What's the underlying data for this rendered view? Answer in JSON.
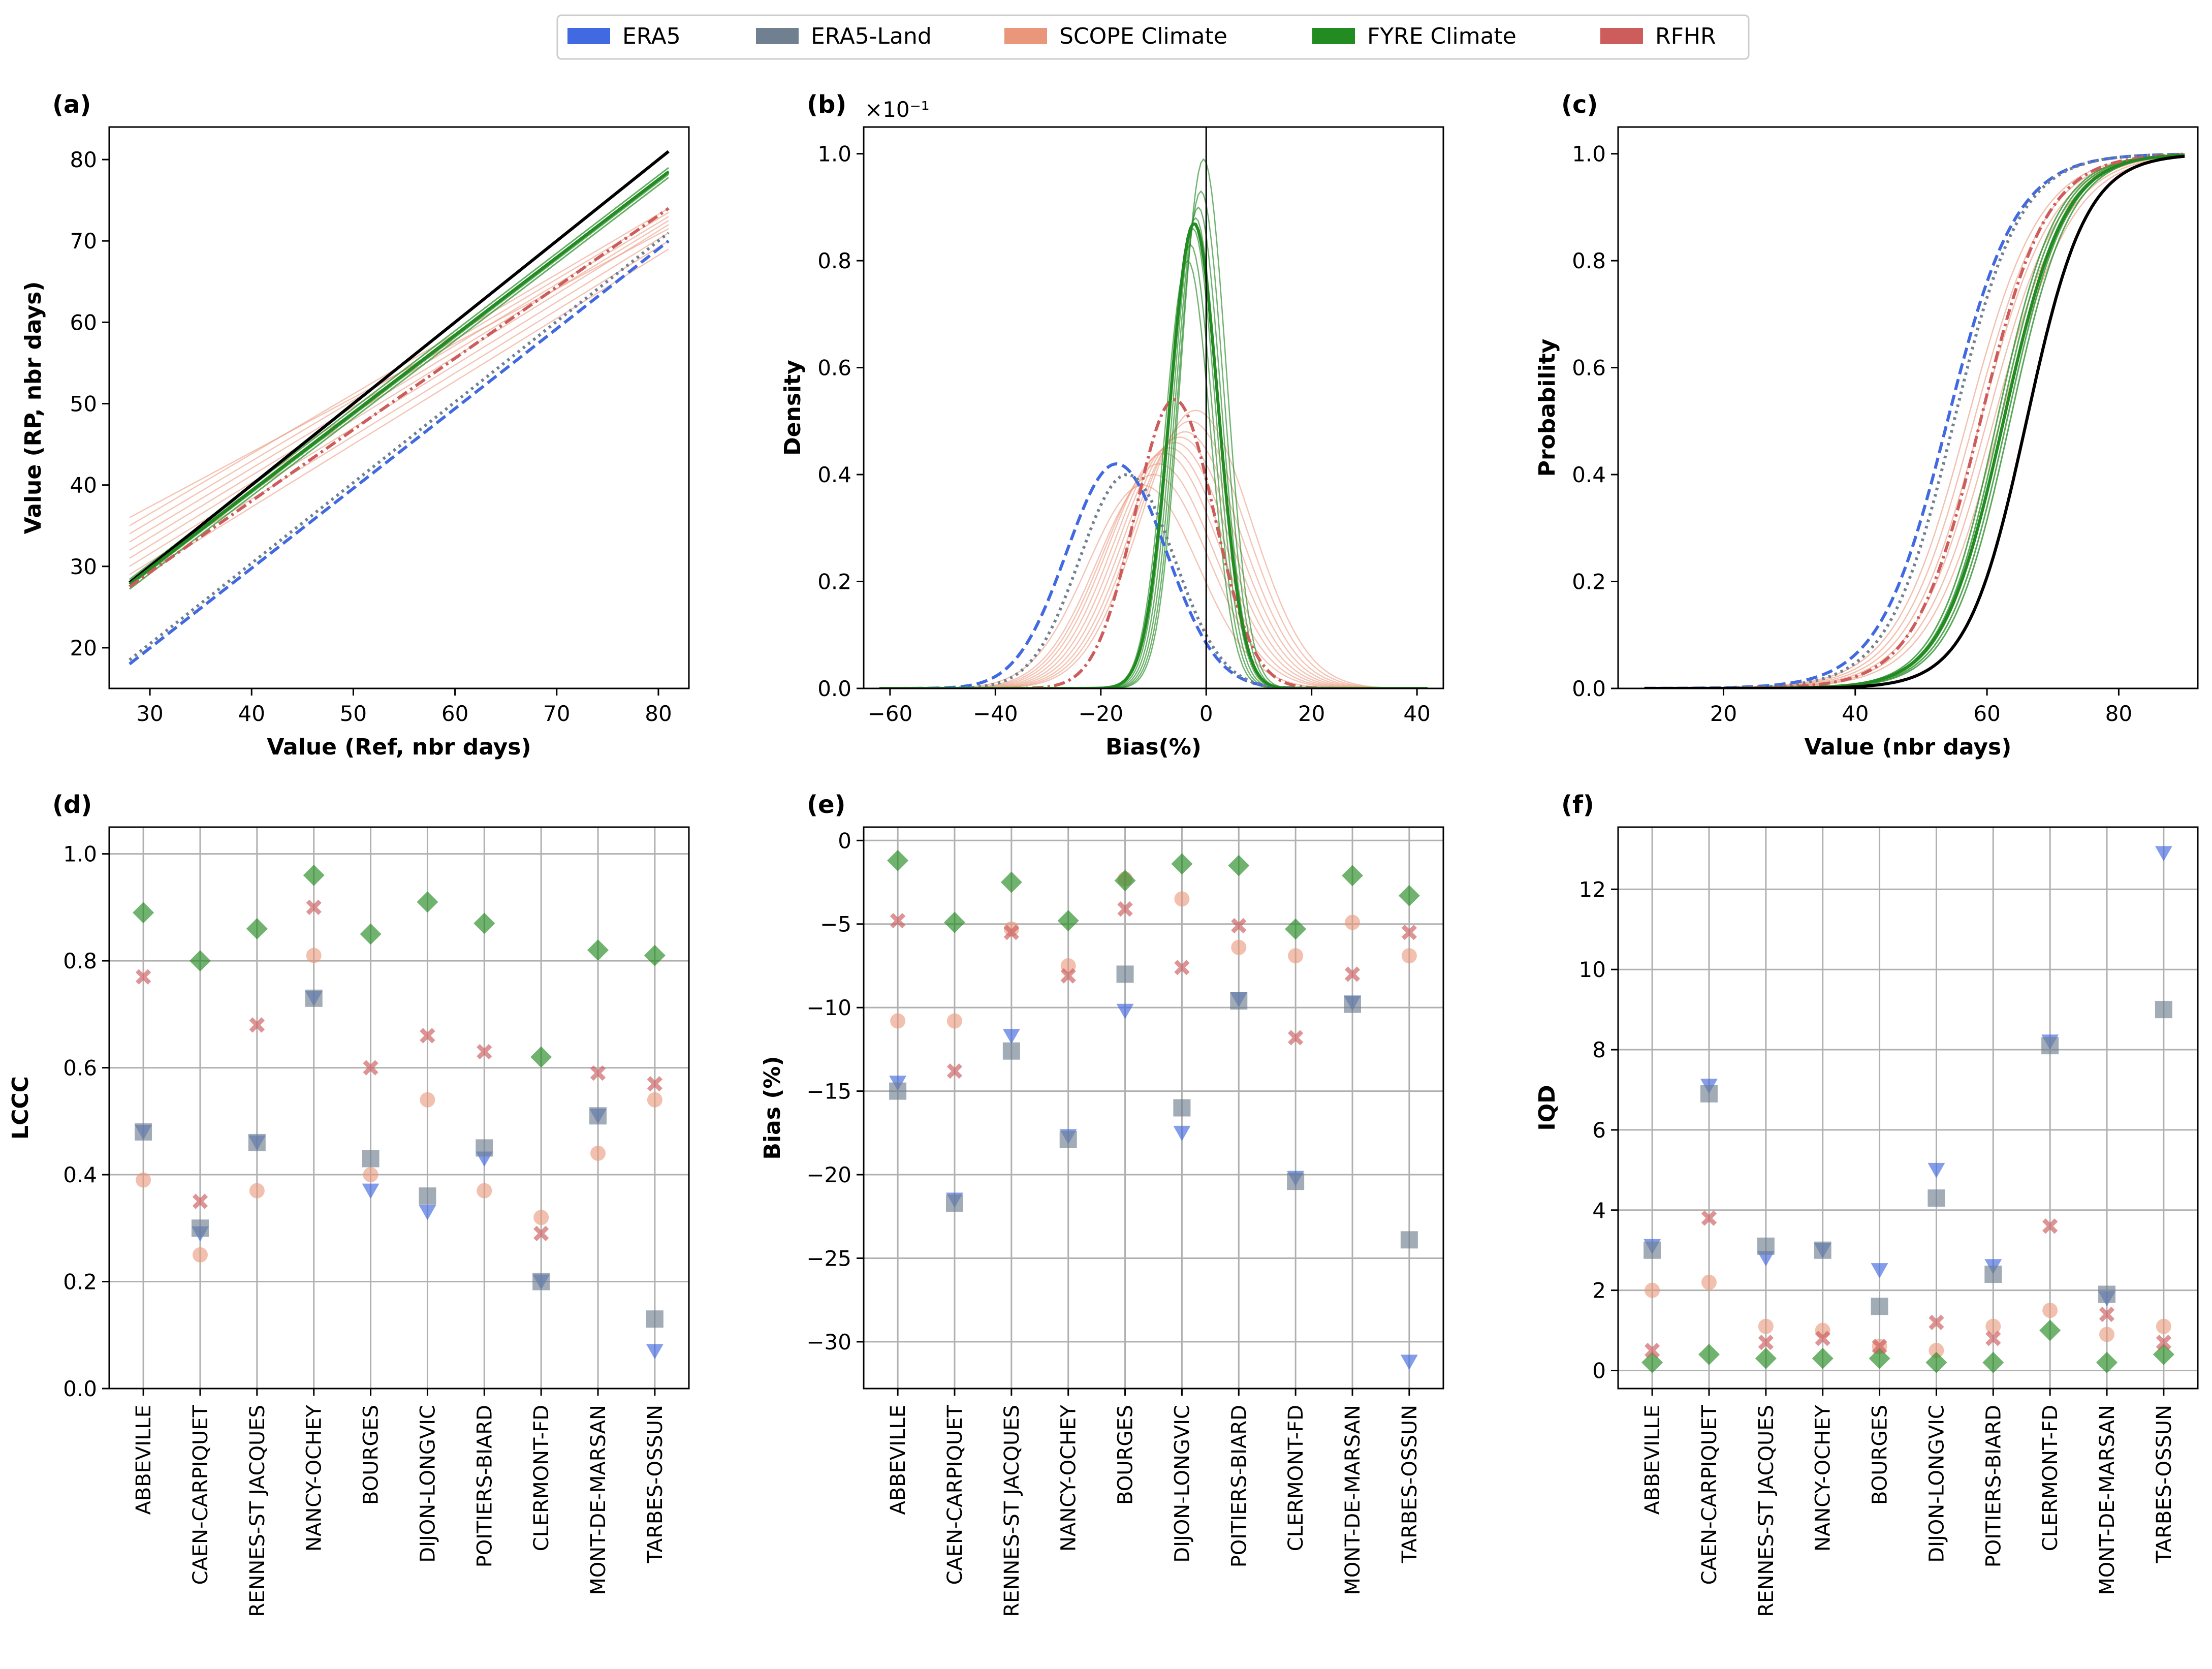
{
  "legend": [
    {
      "name": "ERA5",
      "color": "#4169e1"
    },
    {
      "name": "ERA5-Land",
      "color": "#708090"
    },
    {
      "name": "SCOPE Climate",
      "color": "#e9967a"
    },
    {
      "name": "FYRE Climate",
      "color": "#228b22"
    },
    {
      "name": "RFHR",
      "color": "#cd5c5c"
    }
  ],
  "stations": [
    "ABBEVILLE",
    "CAEN-CARPIQUET",
    "RENNES-ST JACQUES",
    "NANCY-OCHEY",
    "BOURGES",
    "DIJON-LONGVIC",
    "POITIERS-BIARD",
    "CLERMONT-FD",
    "MONT-DE-MARSAN",
    "TARBES-OSSUN"
  ],
  "chart_data": [
    {
      "panel": "(a)",
      "type": "line",
      "xlabel": "Value (Ref, nbr days)",
      "ylabel": "Value (RP, nbr days)",
      "xlim": [
        26,
        83
      ],
      "ylim": [
        15,
        84
      ],
      "xticks": [
        30,
        40,
        50,
        60,
        70,
        80
      ],
      "yticks": [
        20,
        30,
        40,
        50,
        60,
        70,
        80
      ],
      "x": [
        28,
        81
      ],
      "series": [
        {
          "name": "Reference",
          "y": [
            28,
            81
          ],
          "color": "#000000",
          "style": "solid"
        },
        {
          "name": "ERA5",
          "y": [
            18,
            70
          ],
          "color": "#4169e1",
          "style": "dashed"
        },
        {
          "name": "ERA5-Land",
          "y": [
            18.5,
            71
          ],
          "color": "#708090",
          "style": "dotted"
        },
        {
          "name": "FYRE Climate",
          "y": [
            27.8,
            78.5
          ],
          "color": "#228b22",
          "style": "solid"
        },
        {
          "name": "RFHR",
          "y": [
            27.5,
            74
          ],
          "color": "#cd5c5c",
          "style": "dashdot"
        }
      ],
      "scope_members": {
        "y_start": [
          28,
          29,
          30,
          31,
          32,
          33,
          34,
          35,
          36
        ],
        "y_end": [
          69,
          70,
          71,
          72,
          72.5,
          73,
          73.5,
          74,
          71.5
        ]
      },
      "fyre_members": {
        "y_start": [
          27.2,
          27.6,
          28,
          28.4
        ],
        "y_end": [
          77.8,
          78.2,
          78.6,
          79
        ]
      }
    },
    {
      "panel": "(b)",
      "type": "line",
      "xlabel": "Bias(%)",
      "ylabel": "Density",
      "multiplier": "×10⁻¹",
      "xlim": [
        -65,
        45
      ],
      "ylim": [
        0,
        1.05
      ],
      "xticks": [
        -60,
        -40,
        -20,
        0,
        20,
        40
      ],
      "yticks": [
        0.0,
        0.2,
        0.4,
        0.6,
        0.8,
        1.0
      ],
      "vline": 0,
      "series": [
        {
          "name": "ERA5",
          "mean": -17,
          "sd": 9.5,
          "peak": 0.42,
          "color": "#4169e1",
          "style": "dashed"
        },
        {
          "name": "ERA5-Land",
          "mean": -15,
          "sd": 9,
          "peak": 0.4,
          "color": "#708090",
          "style": "dotted"
        },
        {
          "name": "RFHR",
          "mean": -6,
          "sd": 7.5,
          "peak": 0.54,
          "color": "#cd5c5c",
          "style": "dashdot"
        },
        {
          "name": "FYRE Climate",
          "mean": -2.3,
          "sd": 4.6,
          "peak": 0.87,
          "color": "#228b22",
          "style": "solid"
        }
      ],
      "scope_members": {
        "means": [
          -12,
          -10,
          -9,
          -8,
          -7,
          -6,
          -5,
          -4,
          -3,
          -2
        ],
        "sd": 10.5,
        "peaks": [
          0.38,
          0.4,
          0.42,
          0.44,
          0.45,
          0.46,
          0.47,
          0.48,
          0.5,
          0.52
        ]
      },
      "fyre_members": {
        "means": [
          -3.5,
          -3,
          -2.5,
          -2,
          -1.5,
          -1,
          -0.5
        ],
        "sd": 4.3,
        "peaks": [
          0.8,
          0.83,
          0.86,
          0.88,
          0.9,
          0.93,
          0.99
        ]
      }
    },
    {
      "panel": "(c)",
      "type": "line",
      "xlabel": "Value (nbr days)",
      "ylabel": "Probability",
      "xlim": [
        4,
        92
      ],
      "ylim": [
        0,
        1.05
      ],
      "xticks": [
        20,
        40,
        60,
        80
      ],
      "yticks": [
        0.0,
        0.2,
        0.4,
        0.6,
        0.8,
        1.0
      ],
      "x_range": [
        8,
        90
      ],
      "series": [
        {
          "name": "ERA5",
          "median": 54,
          "scale": 5.2,
          "color": "#4169e1",
          "style": "dashed"
        },
        {
          "name": "ERA5-Land",
          "median": 55,
          "scale": 5.0,
          "color": "#708090",
          "style": "dotted"
        },
        {
          "name": "RFHR",
          "median": 59,
          "scale": 5.0,
          "color": "#cd5c5c",
          "style": "dashdot"
        },
        {
          "name": "FYRE Climate",
          "median": 62.5,
          "scale": 4.6,
          "color": "#228b22",
          "style": "solid"
        },
        {
          "name": "Reference",
          "median": 66,
          "scale": 4.5,
          "color": "#000000",
          "style": "solid"
        }
      ],
      "scope_members": {
        "medians": [
          57,
          58,
          59,
          60,
          61,
          62
        ],
        "scale": 5.5
      },
      "fyre_members": {
        "medians": [
          61.5,
          62,
          62.5,
          63,
          63.5
        ],
        "scale": 4.5
      }
    },
    {
      "panel": "(d)",
      "type": "scatter",
      "xlabel": "",
      "ylabel": "LCCC",
      "ylim": [
        0,
        1.05
      ],
      "yticks": [
        0.0,
        0.2,
        0.4,
        0.6,
        0.8,
        1.0
      ],
      "series": [
        {
          "name": "ERA5",
          "values": [
            0.48,
            0.29,
            0.46,
            0.73,
            0.37,
            0.33,
            0.43,
            0.2,
            0.51,
            0.07
          ]
        },
        {
          "name": "ERA5-Land",
          "values": [
            0.48,
            0.3,
            0.46,
            0.73,
            0.43,
            0.36,
            0.45,
            0.2,
            0.51,
            0.13
          ]
        },
        {
          "name": "SCOPE Climate",
          "values": [
            0.39,
            0.25,
            0.37,
            0.81,
            0.4,
            0.54,
            0.37,
            0.32,
            0.44,
            0.54
          ]
        },
        {
          "name": "FYRE Climate",
          "values": [
            0.89,
            0.8,
            0.86,
            0.96,
            0.85,
            0.91,
            0.87,
            0.62,
            0.82,
            0.81
          ]
        },
        {
          "name": "RFHR",
          "values": [
            0.77,
            0.35,
            0.68,
            0.9,
            0.6,
            0.66,
            0.63,
            0.29,
            0.59,
            0.57
          ]
        }
      ]
    },
    {
      "panel": "(e)",
      "type": "scatter",
      "xlabel": "",
      "ylabel": "Bias (%)",
      "ylim": [
        -32.8,
        0.8
      ],
      "yticks": [
        0,
        -5,
        -10,
        -15,
        -20,
        -25,
        -30
      ],
      "series": [
        {
          "name": "ERA5",
          "values": [
            -14.5,
            -21.5,
            -11.7,
            -17.7,
            -10.2,
            -17.5,
            -9.5,
            -20.2,
            -9.7,
            -31.2
          ]
        },
        {
          "name": "ERA5-Land",
          "values": [
            -15.0,
            -21.7,
            -12.6,
            -17.9,
            -8.0,
            -16.0,
            -9.6,
            -20.4,
            -9.8,
            -23.9
          ]
        },
        {
          "name": "SCOPE Climate",
          "values": [
            -10.8,
            -10.8,
            -5.3,
            -7.5,
            -2.3,
            -3.5,
            -6.4,
            -6.9,
            -4.9,
            -6.9
          ]
        },
        {
          "name": "FYRE Climate",
          "values": [
            -1.2,
            -4.9,
            -2.5,
            -4.8,
            -2.4,
            -1.4,
            -1.5,
            -5.3,
            -2.1,
            -3.3
          ]
        },
        {
          "name": "RFHR",
          "values": [
            -4.8,
            -13.8,
            -5.5,
            -8.1,
            -4.1,
            -7.6,
            -5.1,
            -11.8,
            -8.0,
            -5.5
          ]
        }
      ]
    },
    {
      "panel": "(f)",
      "type": "scatter",
      "xlabel": "",
      "ylabel": "IQD",
      "ylim": [
        -0.45,
        13.55
      ],
      "yticks": [
        0,
        2,
        4,
        6,
        8,
        10,
        12
      ],
      "series": [
        {
          "name": "ERA5",
          "values": [
            3.1,
            7.1,
            2.8,
            3.0,
            2.5,
            5.0,
            2.6,
            8.2,
            1.8,
            12.9
          ]
        },
        {
          "name": "ERA5-Land",
          "values": [
            3.0,
            6.9,
            3.1,
            3.0,
            1.6,
            4.3,
            2.4,
            8.1,
            1.9,
            9.0
          ]
        },
        {
          "name": "SCOPE Climate",
          "values": [
            2.0,
            2.2,
            1.1,
            1.0,
            0.6,
            0.5,
            1.1,
            1.5,
            0.9,
            1.1
          ]
        },
        {
          "name": "FYRE Climate",
          "values": [
            0.2,
            0.4,
            0.3,
            0.3,
            0.3,
            0.2,
            0.2,
            1.0,
            0.2,
            0.4
          ]
        },
        {
          "name": "RFHR",
          "values": [
            0.5,
            3.8,
            0.7,
            0.8,
            0.6,
            1.2,
            0.8,
            3.6,
            1.4,
            0.7
          ]
        }
      ]
    }
  ]
}
